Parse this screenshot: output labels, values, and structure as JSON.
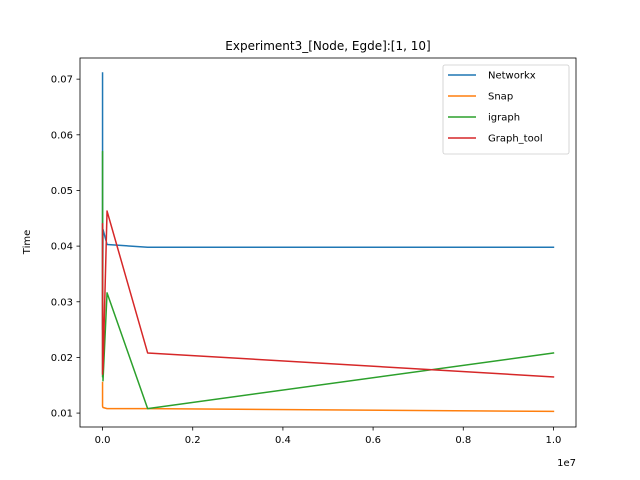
{
  "chart_data": {
    "type": "line",
    "title": "Experiment3_[Node, Egde]:[1, 10]",
    "xlabel": "",
    "ylabel": "Time",
    "x_offset_label": "1e7",
    "xlim": [
      -500000,
      10500000
    ],
    "ylim": [
      0.0075,
      0.0738
    ],
    "xticks": [
      0,
      2000000,
      4000000,
      6000000,
      8000000,
      10000000
    ],
    "xtick_labels": [
      "0.0",
      "0.2",
      "0.4",
      "0.6",
      "0.8",
      "1.0"
    ],
    "yticks": [
      0.01,
      0.02,
      0.03,
      0.04,
      0.05,
      0.06,
      0.07
    ],
    "ytick_labels": [
      "0.01",
      "0.02",
      "0.03",
      "0.04",
      "0.05",
      "0.06",
      "0.07"
    ],
    "grid": false,
    "legend_position": "top-right",
    "x": [
      1,
      10,
      100,
      1000,
      10000,
      100000,
      1000000,
      10000000
    ],
    "series": [
      {
        "name": "Networkx",
        "color": "#1f77b4",
        "values": [
          0.0711,
          0.025,
          0.071,
          0.03,
          0.043,
          0.0403,
          0.0398,
          0.0398
        ]
      },
      {
        "name": "Snap",
        "color": "#ff7f0e",
        "values": [
          0.0155,
          0.012,
          0.0113,
          0.0112,
          0.011,
          0.0108,
          0.0108,
          0.0103
        ]
      },
      {
        "name": "igraph",
        "color": "#2ca02c",
        "values": [
          0.036,
          0.0165,
          0.057,
          0.044,
          0.0158,
          0.0316,
          0.0108,
          0.0208
        ]
      },
      {
        "name": "Graph_tool",
        "color": "#d62728",
        "values": [
          0.044,
          0.017,
          0.029,
          0.035,
          0.0178,
          0.0463,
          0.0208,
          0.0165
        ]
      }
    ]
  }
}
